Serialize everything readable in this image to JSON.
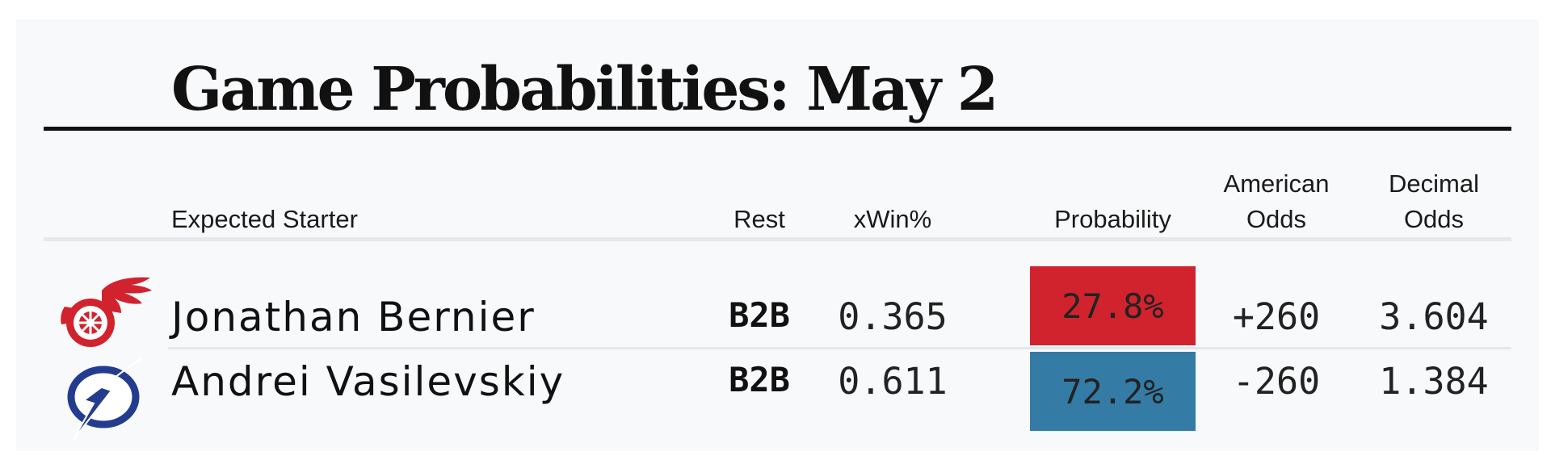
{
  "title": "Game Probabilities: May 2",
  "headers": {
    "starter": "Expected Starter",
    "rest": "Rest",
    "xwin": "xWin%",
    "probability": "Probability",
    "american_1": "American",
    "american_2": "Odds",
    "decimal_1": "Decimal",
    "decimal_2": "Odds"
  },
  "rows": [
    {
      "team_logo": "red-wings-logo",
      "starter": "Jonathan Bernier",
      "rest": "B2B",
      "xwin": "0.365",
      "probability": "27.8%",
      "probability_color": "#d1232d",
      "american_odds": "+260",
      "decimal_odds": "3.604"
    },
    {
      "team_logo": "lightning-logo",
      "starter": "Andrei Vasilevskiy",
      "rest": "B2B",
      "xwin": "0.611",
      "probability": "72.2%",
      "probability_color": "#347ba5",
      "american_odds": "-260",
      "decimal_odds": "1.384"
    }
  ],
  "colors": {
    "background": "#f8f9fb",
    "title": "#111111",
    "red_wings": "#d1232d",
    "lightning": "#233c8e"
  }
}
